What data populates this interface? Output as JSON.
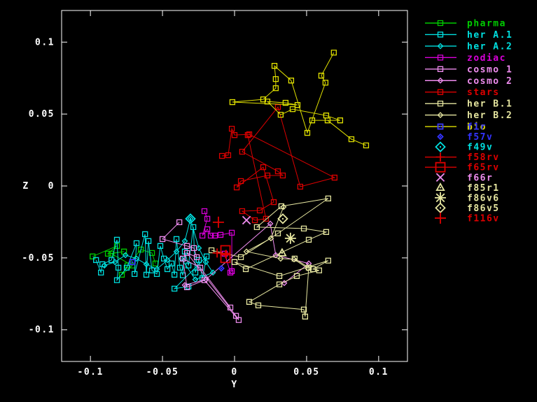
{
  "figure": {
    "background": "#000000",
    "axis_color": "#ffffff",
    "xlabel": "Y",
    "ylabel": "Z"
  },
  "chart_data": {
    "type": "line",
    "title": "",
    "xlabel": "Y",
    "ylabel": "Z",
    "xlim": [
      -0.12,
      0.12
    ],
    "ylim": [
      -0.122,
      0.122
    ],
    "grid": false,
    "legend_position": "outside-top-right",
    "x_ticks": {
      "values": [
        -0.1,
        -0.05,
        0,
        0.05,
        0.1
      ],
      "labels": [
        "-0.1",
        "-0.05",
        "0",
        "0.05",
        "0.1"
      ]
    },
    "y_ticks": {
      "values": [
        -0.1,
        -0.05,
        0,
        0.05,
        0.1
      ],
      "labels": [
        "-0.1",
        "-0.05",
        "0",
        "0.05",
        "0.1"
      ]
    },
    "series": [
      {
        "name": "pharma",
        "color": "#00cc00",
        "marker": "square",
        "msize": 7,
        "line": true,
        "points": [
          [
            -0.0985,
            -0.049
          ],
          [
            -0.0816,
            -0.0417
          ],
          [
            -0.0879,
            -0.0471
          ],
          [
            -0.0767,
            -0.0456
          ],
          [
            -0.0854,
            -0.0471
          ],
          [
            -0.0709,
            -0.0553
          ],
          [
            -0.0782,
            -0.0617
          ],
          [
            -0.0743,
            -0.0553
          ],
          [
            -0.065,
            -0.0442
          ],
          [
            -0.0573,
            -0.0466
          ],
          [
            -0.0549,
            -0.0539
          ]
        ]
      },
      {
        "name": "her A.1",
        "color": "#00e0e0",
        "marker": "square",
        "msize": 7,
        "line": true,
        "points": [
          [
            -0.0961,
            -0.0515
          ],
          [
            -0.0927,
            -0.0602
          ],
          [
            -0.0917,
            -0.0544
          ],
          [
            -0.0854,
            -0.0515
          ],
          [
            -0.0816,
            -0.0374
          ],
          [
            -0.0806,
            -0.0568
          ],
          [
            -0.0816,
            -0.0655
          ],
          [
            -0.0748,
            -0.0568
          ],
          [
            -0.068,
            -0.0398
          ],
          [
            -0.0694,
            -0.0612
          ],
          [
            -0.0621,
            -0.0335
          ],
          [
            -0.0612,
            -0.0617
          ],
          [
            -0.0597,
            -0.0383
          ],
          [
            -0.0573,
            -0.0587
          ],
          [
            -0.0539,
            -0.0612
          ],
          [
            -0.0515,
            -0.0417
          ],
          [
            -0.049,
            -0.0505
          ],
          [
            -0.0466,
            -0.0578
          ],
          [
            -0.0437,
            -0.0539
          ],
          [
            -0.0417,
            -0.0617
          ],
          [
            -0.0403,
            -0.0369
          ],
          [
            -0.0379,
            -0.0568
          ],
          [
            -0.0359,
            -0.0621
          ],
          [
            -0.0345,
            -0.0456
          ],
          [
            -0.032,
            -0.0553
          ],
          [
            -0.0286,
            -0.0286
          ],
          [
            -0.0272,
            -0.0602
          ],
          [
            -0.0248,
            -0.0515
          ],
          [
            -0.0223,
            -0.0641
          ],
          [
            -0.0194,
            -0.049
          ],
          [
            -0.0417,
            -0.0714
          ],
          [
            -0.032,
            -0.0699
          ]
        ]
      },
      {
        "name": "her A.2",
        "color": "#00e0e0",
        "marker": "diamond",
        "msize": 7,
        "line": true,
        "points": [
          [
            -0.0903,
            -0.0553
          ],
          [
            -0.083,
            -0.0529
          ],
          [
            -0.0757,
            -0.0481
          ],
          [
            -0.068,
            -0.0505
          ],
          [
            -0.0612,
            -0.0544
          ],
          [
            -0.0539,
            -0.0578
          ],
          [
            -0.0466,
            -0.0515
          ],
          [
            -0.0403,
            -0.0456
          ],
          [
            -0.0345,
            -0.0383
          ],
          [
            -0.0306,
            -0.0228
          ],
          [
            -0.0248,
            -0.0432
          ],
          [
            -0.0199,
            -0.0529
          ],
          [
            -0.015,
            -0.0602
          ],
          [
            -0.0272,
            -0.065
          ],
          [
            -0.0369,
            -0.0505
          ]
        ]
      },
      {
        "name": "zodiac",
        "color": "#d800d8",
        "marker": "square",
        "msize": 7,
        "line": true,
        "points": [
          [
            -0.0209,
            -0.0175
          ],
          [
            -0.0189,
            -0.0228
          ],
          [
            -0.0223,
            -0.0345
          ],
          [
            -0.0189,
            -0.0301
          ],
          [
            -0.0165,
            -0.0345
          ],
          [
            -0.0136,
            -0.0345
          ],
          [
            -0.0097,
            -0.034
          ],
          [
            -0.0019,
            -0.0325
          ],
          [
            -0.0019,
            -0.0592
          ],
          [
            -0.0029,
            -0.0602
          ],
          [
            -0.0068,
            -0.0471
          ]
        ]
      },
      {
        "name": "cosmo 1",
        "color": "#ee8cee",
        "marker": "square",
        "msize": 7,
        "line": true,
        "points": [
          [
            -0.0383,
            -0.0252
          ],
          [
            -0.05,
            -0.0369
          ],
          [
            -0.033,
            -0.0417
          ],
          [
            -0.0282,
            -0.0432
          ],
          [
            -0.0262,
            -0.0495
          ],
          [
            -0.033,
            -0.0466
          ],
          [
            0.001,
            -0.0903
          ],
          [
            0.0029,
            -0.0932
          ],
          [
            -0.0209,
            -0.0655
          ],
          [
            -0.033,
            -0.0704
          ],
          [
            -0.0359,
            -0.0505
          ],
          [
            -0.0238,
            -0.0568
          ],
          [
            -0.0029,
            -0.0845
          ]
        ]
      },
      {
        "name": "cosmo 2",
        "color": "#ee8cee",
        "marker": "diamond",
        "msize": 7,
        "line": true,
        "points": [
          [
            -0.0345,
            -0.0689
          ],
          [
            -0.0199,
            -0.065
          ],
          [
            0.0248,
            -0.0262
          ],
          [
            0.0286,
            -0.0481
          ],
          [
            0.0515,
            -0.0539
          ],
          [
            0.0345,
            -0.0675
          ]
        ]
      },
      {
        "name": "stars",
        "color": "#dd0000",
        "marker": "square",
        "msize": 7,
        "line": true,
        "points": [
          [
            -0.0087,
            0.0209
          ],
          [
            -0.0044,
            0.0214
          ],
          [
            -0.0019,
            0.0398
          ],
          [
            0.0,
            0.0354
          ],
          [
            0.0102,
            0.0359
          ],
          [
            0.0694,
            0.0058
          ],
          [
            0.0456,
            -0.0005
          ],
          [
            0.0301,
            0.0549
          ],
          [
            0.0053,
            0.0238
          ],
          [
            0.0301,
            0.0102
          ],
          [
            0.0335,
            0.0073
          ],
          [
            0.0228,
            0.0073
          ],
          [
            0.0044,
            0.0034
          ],
          [
            0.0015,
            -0.001
          ],
          [
            0.0199,
            0.0131
          ],
          [
            0.0272,
            -0.0112
          ],
          [
            0.0175,
            -0.017
          ],
          [
            0.0053,
            -0.0175
          ],
          [
            0.0141,
            -0.0238
          ],
          [
            0.0218,
            -0.0228
          ],
          [
            0.0092,
            0.0354
          ]
        ]
      },
      {
        "name": "her B.1",
        "color": "#e6e6a0",
        "marker": "square",
        "msize": 7,
        "line": true,
        "points": [
          [
            -0.016,
            -0.0447
          ],
          [
            0.0044,
            -0.0495
          ],
          [
            0.0301,
            -0.033
          ],
          [
            0.065,
            -0.0087
          ],
          [
            0.0325,
            -0.0141
          ],
          [
            0.0155,
            -0.0286
          ],
          [
            0.0481,
            -0.0296
          ],
          [
            0.0636,
            -0.032
          ],
          [
            0.0515,
            -0.0374
          ],
          [
            0.0078,
            -0.0578
          ],
          [
            0.0,
            -0.0529
          ],
          [
            0.0311,
            -0.0626
          ],
          [
            0.065,
            -0.0519
          ],
          [
            0.0544,
            -0.0578
          ],
          [
            0.0587,
            -0.0587
          ],
          [
            0.0432,
            -0.0626
          ],
          [
            0.0311,
            -0.0684
          ],
          [
            0.0102,
            -0.0806
          ],
          [
            0.0165,
            -0.083
          ],
          [
            0.0481,
            -0.0859
          ],
          [
            0.049,
            -0.0908
          ],
          [
            0.0515,
            -0.0568
          ],
          [
            0.0417,
            -0.0505
          ]
        ]
      },
      {
        "name": "her B.2",
        "color": "#e6e6a0",
        "marker": "diamond",
        "msize": 7,
        "line": true,
        "points": [
          [
            0.034,
            -0.0146
          ],
          [
            0.0252,
            -0.0364
          ],
          [
            0.0083,
            -0.0456
          ],
          [
            0.032,
            -0.0505
          ],
          [
            0.0413,
            -0.051
          ],
          [
            0.051,
            -0.0573
          ]
        ]
      },
      {
        "name": "bio",
        "color": "#e0e000",
        "marker": "square",
        "msize": 7,
        "line": true,
        "points": [
          [
            0.0689,
            0.0927
          ],
          [
            0.0602,
            0.0767
          ],
          [
            0.0631,
            0.0718
          ],
          [
            0.0505,
            0.0369
          ],
          [
            0.0393,
            0.0733
          ],
          [
            0.0277,
            0.0835
          ],
          [
            0.0286,
            0.0743
          ],
          [
            0.0286,
            0.068
          ],
          [
            0.0199,
            0.0602
          ],
          [
            -0.0015,
            0.0583
          ],
          [
            0.0437,
            0.0563
          ],
          [
            0.0354,
            0.0578
          ],
          [
            0.0228,
            0.0587
          ],
          [
            0.032,
            0.0495
          ],
          [
            0.0403,
            0.0534
          ],
          [
            0.0636,
            0.049
          ],
          [
            0.0733,
            0.0456
          ],
          [
            0.0539,
            0.0456
          ],
          [
            0.0646,
            0.0456
          ],
          [
            0.0811,
            0.0325
          ],
          [
            0.0913,
            0.0282
          ]
        ]
      },
      {
        "name": "f1r",
        "color": "#3333ff",
        "marker": "square-dot",
        "msize": 7,
        "line": false,
        "points": [
          [
            -0.0709,
            -0.0529
          ]
        ]
      },
      {
        "name": "f57v",
        "color": "#3333ff",
        "marker": "diamond-dot",
        "msize": 7,
        "line": false,
        "points": [
          [
            -0.0092,
            -0.0573
          ]
        ]
      },
      {
        "name": "f49v",
        "color": "#00e0e0",
        "marker": "diamond-dot",
        "msize": 13,
        "line": false,
        "points": [
          [
            -0.0306,
            -0.0228
          ]
        ]
      },
      {
        "name": "f58rv",
        "color": "#dd0000",
        "marker": "plus",
        "msize": 13,
        "line": true,
        "points": [
          [
            -0.0121,
            -0.0466
          ],
          [
            -0.0058,
            -0.0476
          ]
        ]
      },
      {
        "name": "f65rv",
        "color": "#dd0000",
        "marker": "square",
        "msize": 13,
        "line": true,
        "points": [
          [
            -0.0063,
            -0.0447
          ],
          [
            -0.0063,
            -0.05
          ]
        ]
      },
      {
        "name": "f66r",
        "color": "#ee8cee",
        "marker": "x",
        "msize": 14,
        "line": false,
        "points": [
          [
            0.0083,
            -0.0238
          ]
        ]
      },
      {
        "name": "f85r1",
        "color": "#e6e6a0",
        "marker": "triangle-dot",
        "msize": 11,
        "line": false,
        "points": [
          [
            0.033,
            -0.0466
          ]
        ]
      },
      {
        "name": "f86v6",
        "color": "#e6e6a0",
        "marker": "asterisk",
        "msize": 16,
        "line": false,
        "points": [
          [
            0.0388,
            -0.0364
          ]
        ]
      },
      {
        "name": "f86v5",
        "color": "#e6e6a0",
        "marker": "diamond-dot",
        "msize": 13,
        "line": false,
        "points": [
          [
            0.0335,
            -0.0228
          ]
        ]
      },
      {
        "name": "f116v",
        "color": "#dd0000",
        "marker": "plus",
        "msize": 16,
        "line": false,
        "points": [
          [
            -0.0112,
            -0.0252
          ]
        ]
      }
    ]
  }
}
